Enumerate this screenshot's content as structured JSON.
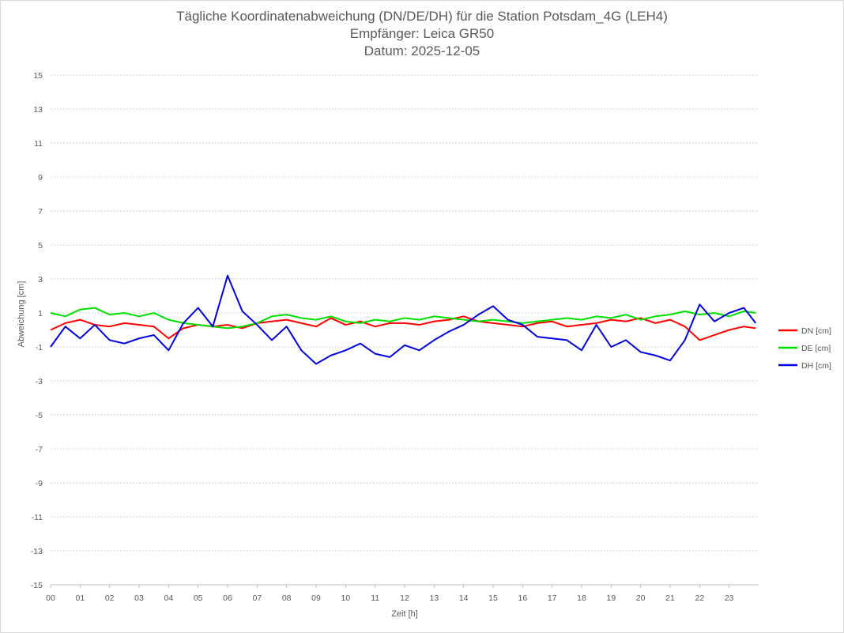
{
  "chart_data": {
    "type": "line",
    "title_lines": [
      "Tägliche Koordinatenabweichung (DN/DE/DH) für die Station Potsdam_4G (LEH4)",
      "Empfänger: Leica GR50",
      "Datum: 2025-12-05"
    ],
    "xlabel": "Zeit [h]",
    "ylabel": "Abweichung [cm]",
    "xlim": [
      0,
      24
    ],
    "ylim": [
      -15,
      15
    ],
    "x_ticks": [
      "00",
      "01",
      "02",
      "03",
      "04",
      "05",
      "06",
      "07",
      "08",
      "09",
      "10",
      "11",
      "12",
      "13",
      "14",
      "15",
      "16",
      "17",
      "18",
      "19",
      "20",
      "21",
      "22",
      "23"
    ],
    "y_ticks": [
      15,
      13,
      11,
      9,
      7,
      5,
      3,
      1,
      -1,
      -3,
      -5,
      -7,
      -9,
      -11,
      -13,
      -15
    ],
    "gridlines": "horizontal-dotted",
    "legend_position": "right",
    "series": [
      {
        "name": "DN [cm]",
        "color": "#ff0000",
        "x": [
          0,
          0.5,
          1,
          1.5,
          2,
          2.5,
          3,
          3.5,
          4,
          4.5,
          5,
          5.5,
          6,
          6.5,
          7,
          7.5,
          8,
          8.5,
          9,
          9.5,
          10,
          10.5,
          11,
          11.5,
          12,
          12.5,
          13,
          13.5,
          14,
          14.5,
          15,
          15.5,
          16,
          16.5,
          17,
          17.5,
          18,
          18.5,
          19,
          19.5,
          20,
          20.5,
          21,
          21.5,
          22,
          22.5,
          23,
          23.5,
          23.9
        ],
        "values": [
          0.0,
          0.4,
          0.6,
          0.3,
          0.2,
          0.4,
          0.3,
          0.2,
          -0.5,
          0.1,
          0.3,
          0.2,
          0.3,
          0.1,
          0.4,
          0.5,
          0.6,
          0.4,
          0.2,
          0.7,
          0.3,
          0.5,
          0.2,
          0.4,
          0.4,
          0.3,
          0.5,
          0.6,
          0.8,
          0.5,
          0.4,
          0.3,
          0.2,
          0.4,
          0.5,
          0.2,
          0.3,
          0.4,
          0.6,
          0.5,
          0.7,
          0.4,
          0.6,
          0.2,
          -0.6,
          -0.3,
          0.0,
          0.2,
          0.1
        ]
      },
      {
        "name": "DE [cm]",
        "color": "#00e000",
        "x": [
          0,
          0.5,
          1,
          1.5,
          2,
          2.5,
          3,
          3.5,
          4,
          4.5,
          5,
          5.5,
          6,
          6.5,
          7,
          7.5,
          8,
          8.5,
          9,
          9.5,
          10,
          10.5,
          11,
          11.5,
          12,
          12.5,
          13,
          13.5,
          14,
          14.5,
          15,
          15.5,
          16,
          16.5,
          17,
          17.5,
          18,
          18.5,
          19,
          19.5,
          20,
          20.5,
          21,
          21.5,
          22,
          22.5,
          23,
          23.5,
          23.9
        ],
        "values": [
          1.0,
          0.8,
          1.2,
          1.3,
          0.9,
          1.0,
          0.8,
          1.0,
          0.6,
          0.4,
          0.3,
          0.2,
          0.1,
          0.2,
          0.4,
          0.8,
          0.9,
          0.7,
          0.6,
          0.8,
          0.5,
          0.4,
          0.6,
          0.5,
          0.7,
          0.6,
          0.8,
          0.7,
          0.6,
          0.5,
          0.6,
          0.5,
          0.4,
          0.5,
          0.6,
          0.7,
          0.6,
          0.8,
          0.7,
          0.9,
          0.6,
          0.8,
          0.9,
          1.1,
          0.9,
          1.0,
          0.8,
          1.1,
          1.0
        ]
      },
      {
        "name": "DH [cm]",
        "color": "#0000e0",
        "x": [
          0,
          0.5,
          1,
          1.5,
          2,
          2.5,
          3,
          3.5,
          4,
          4.5,
          5,
          5.5,
          6,
          6.5,
          7,
          7.5,
          8,
          8.5,
          9,
          9.5,
          10,
          10.5,
          11,
          11.5,
          12,
          12.5,
          13,
          13.5,
          14,
          14.5,
          15,
          15.5,
          16,
          16.5,
          17,
          17.5,
          18,
          18.5,
          19,
          19.5,
          20,
          20.5,
          21,
          21.5,
          22,
          22.5,
          23,
          23.5,
          23.9
        ],
        "values": [
          -1.0,
          0.2,
          -0.5,
          0.3,
          -0.6,
          -0.8,
          -0.5,
          -0.3,
          -1.2,
          0.4,
          1.3,
          0.2,
          3.2,
          1.1,
          0.3,
          -0.6,
          0.2,
          -1.2,
          -2.0,
          -1.5,
          -1.2,
          -0.8,
          -1.4,
          -1.6,
          -0.9,
          -1.2,
          -0.6,
          -0.1,
          0.3,
          0.9,
          1.4,
          0.6,
          0.3,
          -0.4,
          -0.5,
          -0.6,
          -1.2,
          0.3,
          -1.0,
          -0.6,
          -1.3,
          -1.5,
          -1.8,
          -0.6,
          1.5,
          0.5,
          1.0,
          1.3,
          0.4
        ]
      }
    ]
  }
}
